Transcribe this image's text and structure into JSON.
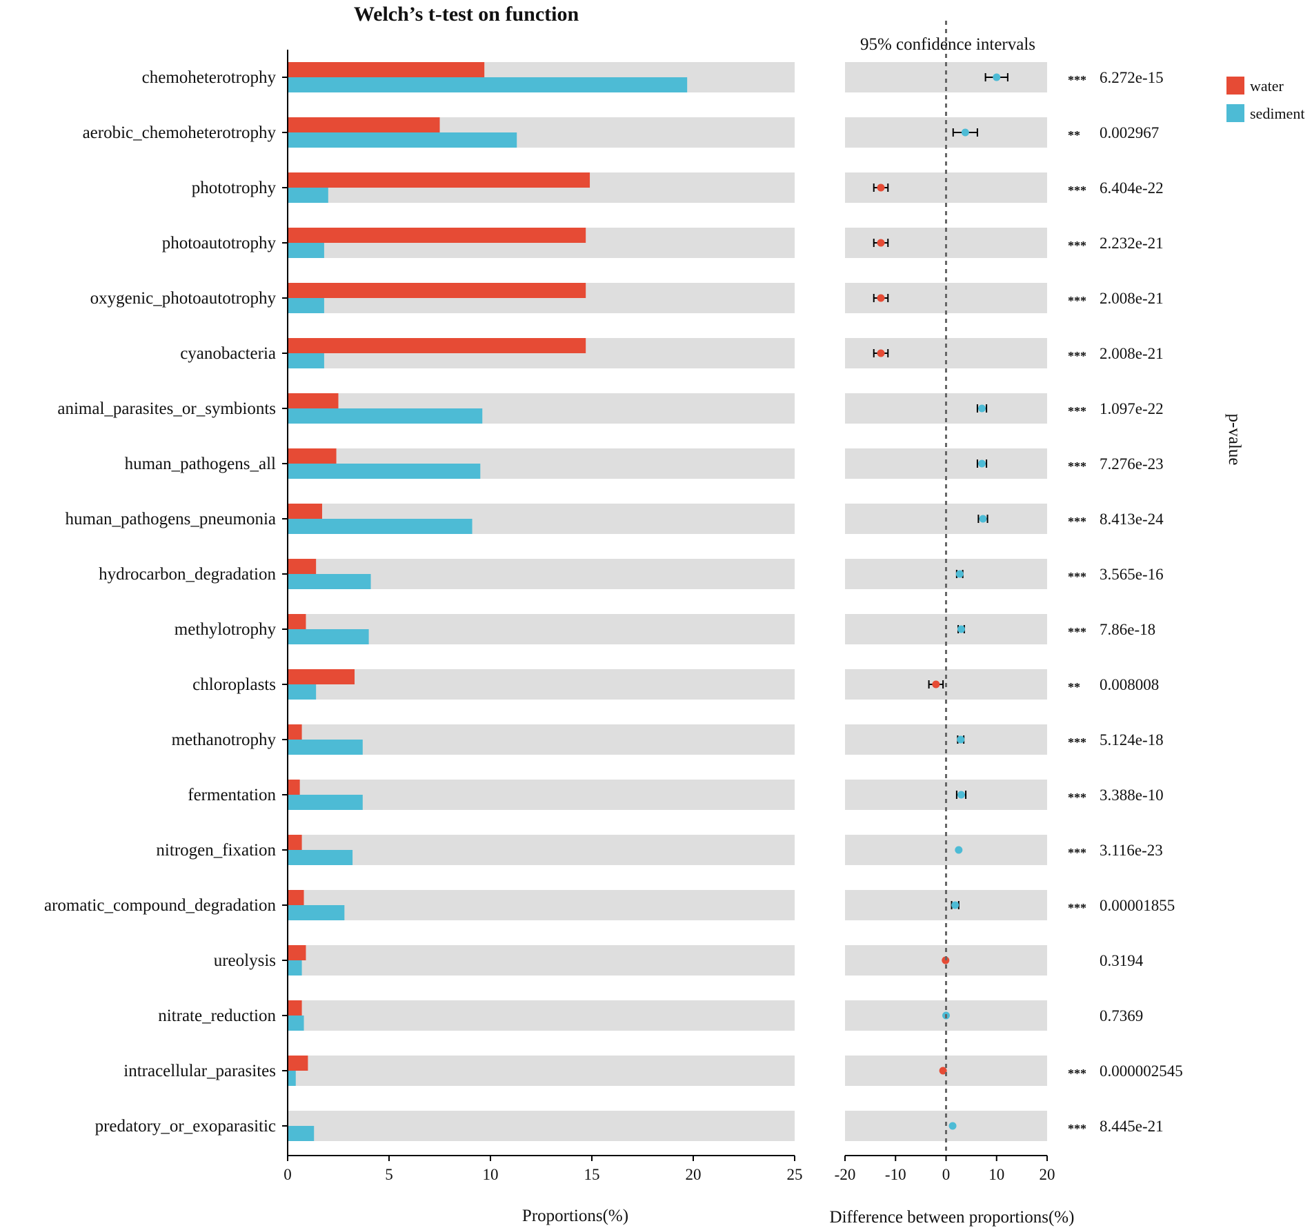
{
  "chart_data": {
    "type": "bar",
    "title": "Welch’s t-test on function",
    "categories": [
      "chemoheterotrophy",
      "aerobic_chemoheterotrophy",
      "phototrophy",
      "photoautotrophy",
      "oxygenic_photoautotrophy",
      "cyanobacteria",
      "animal_parasites_or_symbionts",
      "human_pathogens_all",
      "human_pathogens_pneumonia",
      "hydrocarbon_degradation",
      "methylotrophy",
      "chloroplasts",
      "methanotrophy",
      "fermentation",
      "nitrogen_fixation",
      "aromatic_compound_degradation",
      "ureolysis",
      "nitrate_reduction",
      "intracellular_parasites",
      "predatory_or_exoparasitic"
    ],
    "series": [
      {
        "name": "water",
        "color": "#e64b35",
        "values": [
          9.7,
          7.5,
          14.9,
          14.7,
          14.7,
          14.7,
          2.5,
          2.4,
          1.7,
          1.4,
          0.9,
          3.3,
          0.7,
          0.6,
          0.7,
          0.8,
          0.9,
          0.7,
          1.0,
          0.0
        ]
      },
      {
        "name": "sediment",
        "color": "#4dbbd5",
        "values": [
          19.7,
          11.3,
          2.0,
          1.8,
          1.8,
          1.8,
          9.6,
          9.5,
          9.1,
          4.1,
          4.0,
          1.4,
          3.7,
          3.7,
          3.2,
          2.8,
          0.7,
          0.8,
          0.4,
          1.3
        ]
      }
    ],
    "xlabel": "Proportions(%)",
    "xlim": [
      0,
      25
    ],
    "xticks": [
      0,
      5,
      10,
      15,
      20,
      25
    ],
    "difference": {
      "title": "95% confidence intervals",
      "xlabel": "Difference between proportions(%)",
      "xlim": [
        -20,
        20
      ],
      "xticks": [
        -20,
        -10,
        0,
        10,
        20
      ],
      "tick_labels": [
        "-20",
        "-10",
        "0",
        "10",
        "20"
      ],
      "diff": [
        10.0,
        3.8,
        -12.9,
        -12.9,
        -12.9,
        -12.9,
        7.1,
        7.1,
        7.3,
        2.7,
        3.0,
        -2.0,
        2.9,
        3.0,
        2.5,
        1.8,
        -0.1,
        0.0,
        -0.6,
        1.3
      ],
      "lower": [
        7.8,
        1.4,
        -14.3,
        -14.3,
        -14.3,
        -14.3,
        6.2,
        6.2,
        6.4,
        2.1,
        2.4,
        -3.4,
        2.3,
        2.1,
        2.5,
        1.1,
        -0.1,
        0.0,
        -0.6,
        1.3
      ],
      "upper": [
        12.2,
        6.2,
        -11.5,
        -11.5,
        -11.5,
        -11.5,
        8.0,
        8.0,
        8.2,
        3.3,
        3.6,
        -0.6,
        3.5,
        3.9,
        2.5,
        2.5,
        -0.1,
        0.0,
        -0.6,
        1.3
      ],
      "favored": [
        "sediment",
        "sediment",
        "water",
        "water",
        "water",
        "water",
        "sediment",
        "sediment",
        "sediment",
        "sediment",
        "sediment",
        "water",
        "sediment",
        "sediment",
        "sediment",
        "sediment",
        "water",
        "sediment",
        "water",
        "sediment"
      ]
    },
    "pvalue_label": "p-value",
    "significance": [
      "***",
      "**",
      "***",
      "***",
      "***",
      "***",
      "***",
      "***",
      "***",
      "***",
      "***",
      "**",
      "***",
      "***",
      "***",
      "***",
      "",
      "",
      "***",
      "***"
    ],
    "pvalues": [
      "6.272e-15",
      "0.002967",
      "6.404e-22",
      "2.232e-21",
      "2.008e-21",
      "2.008e-21",
      "1.097e-22",
      "7.276e-23",
      "8.413e-24",
      "3.565e-16",
      "7.86e-18",
      "0.008008",
      "5.124e-18",
      "3.388e-10",
      "3.116e-23",
      "0.00001855",
      "0.3194",
      "0.7369",
      "0.000002545",
      "8.445e-21"
    ],
    "legend_position": "top-right",
    "colors": {
      "background_band": "#dedede",
      "zero_line": "#666666"
    }
  }
}
